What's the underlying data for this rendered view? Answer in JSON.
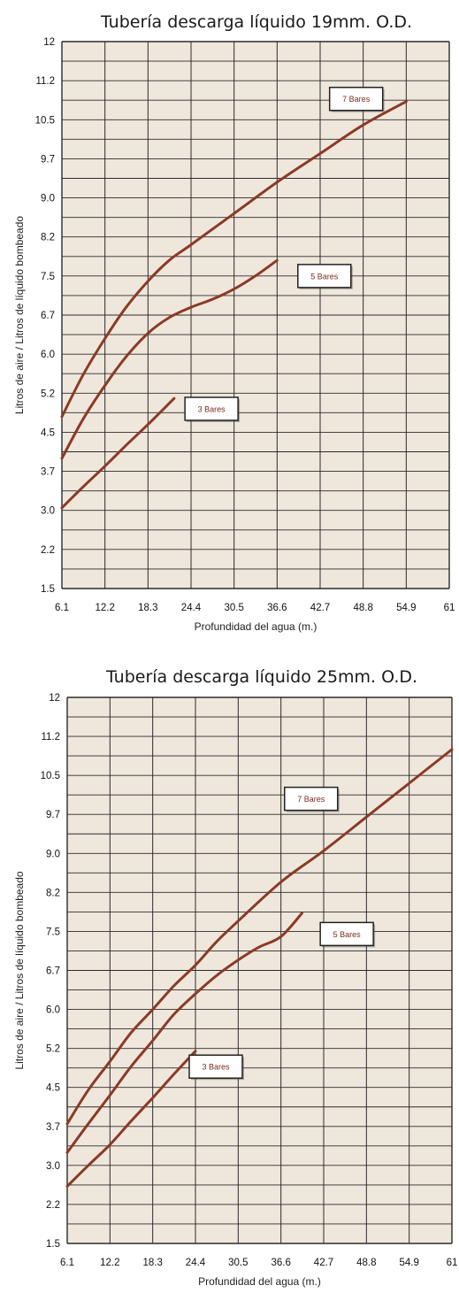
{
  "colors": {
    "plot_bg": "#efe7dc",
    "grid": "#2b2b2b",
    "curve": "#8b3a26",
    "callout_border": "#222222",
    "callout_text": "#7a2a1e"
  },
  "chart_data": [
    {
      "type": "line",
      "title": "Tubería descarga líquido 19mm. O.D.",
      "xlabel": "Profundidad del agua (m.)",
      "ylabel": "Litros de aire / Litros de líquido bombeado",
      "xlim": [
        6.1,
        61
      ],
      "ylim": [
        1.5,
        12
      ],
      "x_ticks": [
        "6.1",
        "12.2",
        "18.3",
        "24.4",
        "30.5",
        "36.6",
        "42.7",
        "48.8",
        "54.9",
        "61"
      ],
      "y_ticks": [
        "12",
        "11.2",
        "10.5",
        "9.7",
        "9.0",
        "8.2",
        "7.5",
        "6.7",
        "6.0",
        "5.2",
        "4.5",
        "3.7",
        "3.0",
        "2.2",
        "1.5"
      ],
      "grid": true,
      "series": [
        {
          "name": "7 Bares",
          "x": [
            6.1,
            9.1,
            12.2,
            15.2,
            18.3,
            21.3,
            24.4,
            30.5,
            36.6,
            42.7,
            48.8,
            54.9
          ],
          "y": [
            4.8,
            5.6,
            6.3,
            6.9,
            7.4,
            7.8,
            8.1,
            8.7,
            9.3,
            9.85,
            10.4,
            10.85
          ]
        },
        {
          "name": "5 Bares",
          "x": [
            6.1,
            9.1,
            12.2,
            15.2,
            18.3,
            21.3,
            24.4,
            27.4,
            30.5,
            33.5,
            36.6
          ],
          "y": [
            4.0,
            4.75,
            5.4,
            5.95,
            6.4,
            6.7,
            6.9,
            7.05,
            7.25,
            7.5,
            7.8
          ]
        },
        {
          "name": "3 Bares",
          "x": [
            6.1,
            9.1,
            12.2,
            15.2,
            18.3,
            22.0
          ],
          "y": [
            3.05,
            3.45,
            3.85,
            4.25,
            4.65,
            5.15
          ]
        }
      ],
      "annotations": [
        {
          "text": "7 Bares",
          "x": 47.8,
          "y": 10.9
        },
        {
          "text": "5 Bares",
          "x": 43.3,
          "y": 7.5
        },
        {
          "text": "3 Bares",
          "x": 27.3,
          "y": 4.95
        }
      ]
    },
    {
      "type": "line",
      "title": "Tubería descarga líquido 25mm. O.D.",
      "xlabel": "Profundidad del agua (m.)",
      "ylabel": "Litros de aire / Litros de líquido bombeado",
      "xlim": [
        6.1,
        61
      ],
      "ylim": [
        1.5,
        12
      ],
      "x_ticks": [
        "6.1",
        "12.2",
        "18.3",
        "24.4",
        "30.5",
        "36.6",
        "42.7",
        "48.8",
        "54.9",
        "61"
      ],
      "y_ticks": [
        "12",
        "11.2",
        "10.5",
        "9.7",
        "9.0",
        "8.2",
        "7.5",
        "6.7",
        "6.0",
        "5.2",
        "4.5",
        "3.7",
        "3.0",
        "2.2",
        "1.5"
      ],
      "grid": true,
      "series": [
        {
          "name": "7 Bares",
          "x": [
            6.1,
            9.1,
            12.2,
            15.2,
            18.3,
            21.3,
            24.4,
            27.4,
            30.5,
            36.6,
            42.7,
            48.8,
            54.9,
            61.0
          ],
          "y": [
            3.8,
            4.45,
            5.0,
            5.55,
            6.0,
            6.45,
            6.85,
            7.3,
            7.7,
            8.45,
            9.05,
            9.7,
            10.35,
            11.0
          ]
        },
        {
          "name": "5 Bares",
          "x": [
            6.1,
            9.1,
            12.2,
            15.2,
            18.3,
            21.3,
            24.4,
            27.4,
            30.5,
            33.5,
            36.6,
            39.6
          ],
          "y": [
            3.25,
            3.8,
            4.35,
            4.9,
            5.4,
            5.9,
            6.3,
            6.65,
            6.95,
            7.2,
            7.4,
            7.85
          ]
        },
        {
          "name": "3 Bares",
          "x": [
            6.1,
            9.1,
            12.2,
            15.2,
            18.3,
            21.3,
            24.4
          ],
          "y": [
            2.6,
            3.0,
            3.4,
            3.85,
            4.3,
            4.75,
            5.2
          ]
        }
      ],
      "annotations": [
        {
          "text": "7 Bares",
          "x": 40.9,
          "y": 10.05
        },
        {
          "text": "5 Bares",
          "x": 46.0,
          "y": 7.45
        },
        {
          "text": "3 Bares",
          "x": 27.3,
          "y": 4.9
        }
      ]
    }
  ]
}
